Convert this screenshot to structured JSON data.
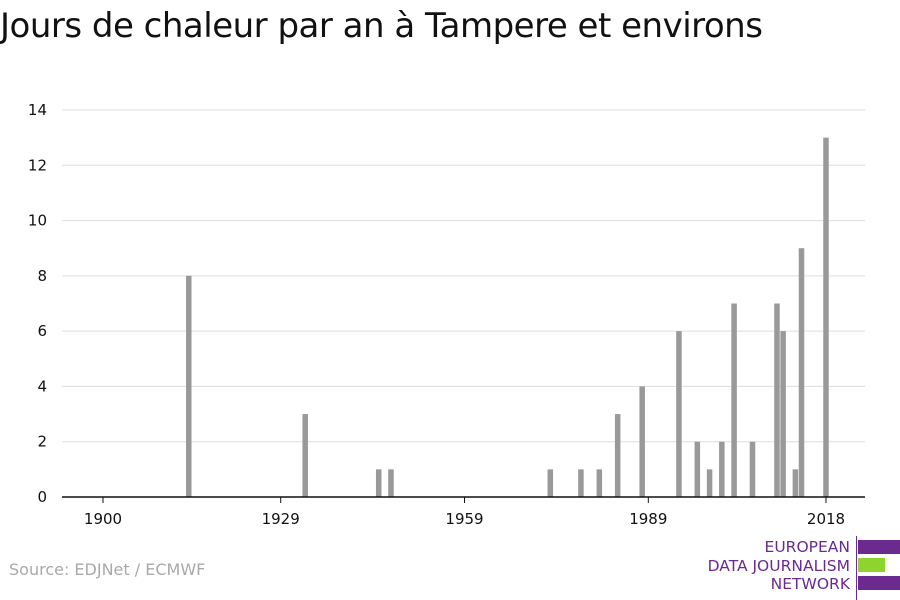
{
  "title": "Jours de chaleur par an à Tampere et environs",
  "source": "Source: EDJNet / ECMWF",
  "logo": {
    "lines": [
      "EUROPEAN",
      "DATA JOURNALISM",
      "NETWORK"
    ],
    "colors": {
      "text": "#6b2a8e",
      "bar_primary": "#6b2a8e",
      "bar_accent": "#8fd42e"
    }
  },
  "colors": {
    "bar": "#999999",
    "grid": "#dddddd",
    "axis": "#111111"
  },
  "chart_data": {
    "type": "bar",
    "title": "Jours de chaleur par an à Tampere et environs",
    "xlabel": "",
    "ylabel": "",
    "xlim": [
      1894,
      2022
    ],
    "ylim": [
      0,
      14
    ],
    "yticks": [
      0,
      2,
      4,
      6,
      8,
      10,
      12,
      14
    ],
    "xticks": [
      1900,
      1929,
      1959,
      1989,
      2018
    ],
    "grid": true,
    "x": [
      1914,
      1933,
      1945,
      1947,
      1973,
      1978,
      1981,
      1984,
      1988,
      1994,
      1997,
      1999,
      2001,
      2003,
      2006,
      2010,
      2011,
      2013,
      2014,
      2018
    ],
    "values": [
      8,
      3,
      1,
      1,
      1,
      1,
      1,
      3,
      4,
      6,
      2,
      1,
      2,
      7,
      2,
      7,
      6,
      1,
      9,
      13
    ]
  }
}
